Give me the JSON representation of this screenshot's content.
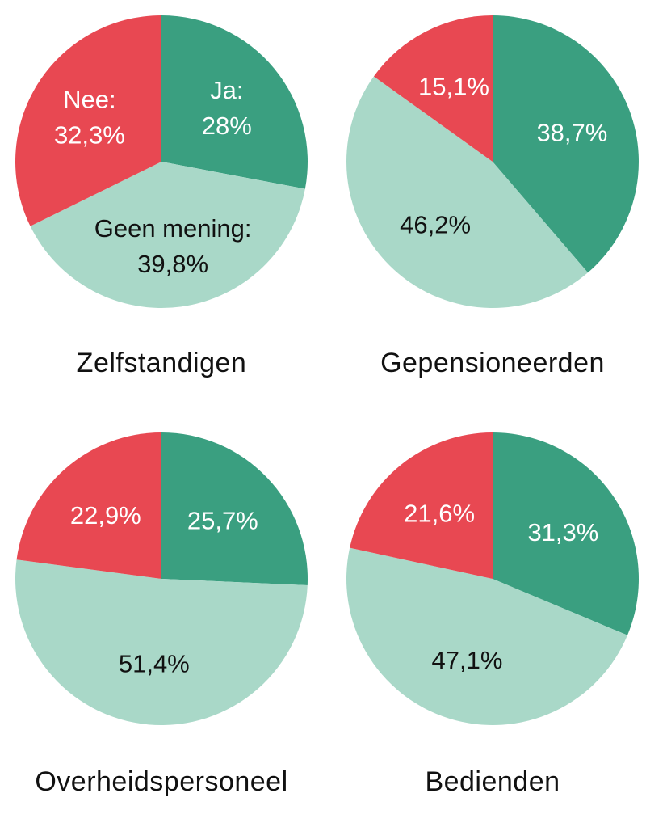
{
  "colors": {
    "ja": "#3a9f80",
    "nee": "#e84852",
    "geen": "#a9d8c8",
    "light_text": "#ffffff",
    "dark_text": "#111111"
  },
  "chart_data": [
    {
      "type": "pie",
      "title": "Zelfstandigen",
      "slices": [
        {
          "category": "Ja",
          "value": 28,
          "label_lines": [
            "Ja:",
            "28%"
          ]
        },
        {
          "category": "Geen mening",
          "value": 39.8,
          "label_lines": [
            "Geen mening:",
            "39,8%"
          ]
        },
        {
          "category": "Nee",
          "value": 32.3,
          "label_lines": [
            "Nee:",
            "32,3%"
          ]
        }
      ]
    },
    {
      "type": "pie",
      "title": "Gepensioneerden",
      "slices": [
        {
          "category": "Ja",
          "value": 38.7,
          "label_lines": [
            "38,7%"
          ]
        },
        {
          "category": "Geen mening",
          "value": 46.2,
          "label_lines": [
            "46,2%"
          ]
        },
        {
          "category": "Nee",
          "value": 15.1,
          "label_lines": [
            "15,1%"
          ]
        }
      ]
    },
    {
      "type": "pie",
      "title": "Overheidspersoneel",
      "slices": [
        {
          "category": "Ja",
          "value": 25.7,
          "label_lines": [
            "25,7%"
          ]
        },
        {
          "category": "Geen mening",
          "value": 51.4,
          "label_lines": [
            "51,4%"
          ]
        },
        {
          "category": "Nee",
          "value": 22.9,
          "label_lines": [
            "22,9%"
          ]
        }
      ]
    },
    {
      "type": "pie",
      "title": "Bedienden",
      "slices": [
        {
          "category": "Ja",
          "value": 31.3,
          "label_lines": [
            "31,3%"
          ]
        },
        {
          "category": "Geen mening",
          "value": 47.1,
          "label_lines": [
            "47,1%"
          ]
        },
        {
          "category": "Nee",
          "value": 21.6,
          "label_lines": [
            "21,6%"
          ]
        }
      ]
    }
  ]
}
